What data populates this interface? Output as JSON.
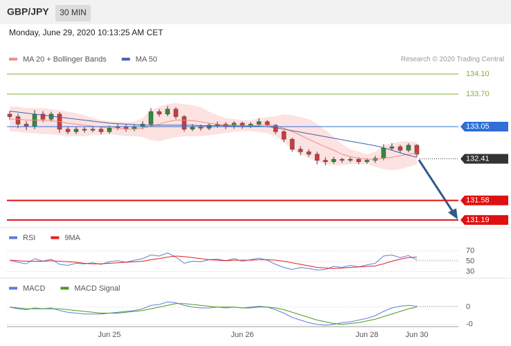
{
  "header": {
    "symbol": "GBP/JPY",
    "timeframe": "30 MIN",
    "timestamp": "Monday, June 29, 2020 10:13:25 AM CET",
    "credit": "Research © 2020 Trading Central"
  },
  "chart_data": [
    {
      "type": "candlestick",
      "categories": [
        null,
        null,
        null,
        null,
        null,
        null,
        null,
        null,
        null,
        null,
        null,
        null,
        "Jun 25",
        null,
        null,
        null,
        null,
        null,
        null,
        null,
        null,
        null,
        null,
        null,
        null,
        null,
        null,
        null,
        "Jun 26",
        null,
        null,
        null,
        null,
        null,
        null,
        null,
        null,
        null,
        null,
        null,
        null,
        null,
        null,
        "Jun 28",
        null,
        null,
        null,
        null,
        null,
        "Jun 30"
      ],
      "open": [
        133.3,
        133.25,
        133.1,
        133.05,
        133.3,
        133.2,
        133.3,
        133.0,
        132.95,
        133.0,
        132.98,
        133.0,
        132.95,
        133.02,
        133.05,
        133.0,
        133.05,
        133.1,
        133.35,
        133.3,
        133.4,
        133.25,
        133.0,
        133.05,
        133.02,
        133.08,
        133.1,
        133.05,
        133.12,
        133.05,
        133.1,
        133.15,
        133.08,
        132.95,
        132.8,
        132.6,
        132.55,
        132.5,
        132.38,
        132.35,
        132.4,
        132.38,
        132.4,
        132.35,
        132.38,
        132.42,
        132.62,
        132.65,
        132.58,
        132.68
      ],
      "high": [
        133.36,
        133.31,
        133.16,
        133.38,
        133.36,
        133.35,
        133.34,
        133.06,
        133.05,
        133.04,
        133.05,
        133.05,
        133.07,
        133.1,
        133.1,
        133.1,
        133.16,
        133.42,
        133.4,
        133.46,
        133.44,
        133.28,
        133.1,
        133.09,
        133.12,
        133.15,
        133.14,
        133.16,
        133.15,
        133.14,
        133.22,
        133.18,
        133.1,
        132.98,
        132.83,
        132.66,
        132.6,
        132.55,
        132.44,
        132.45,
        132.43,
        132.44,
        132.44,
        132.42,
        132.47,
        132.7,
        132.72,
        132.69,
        132.72,
        132.7
      ],
      "low": [
        133.19,
        133.02,
        132.98,
        133.0,
        133.14,
        133.15,
        132.93,
        132.9,
        132.9,
        132.93,
        132.94,
        132.9,
        132.91,
        132.98,
        132.95,
        132.96,
        133.0,
        133.06,
        133.25,
        133.26,
        133.2,
        132.95,
        132.96,
        132.97,
        132.98,
        133.03,
        133.0,
        133.01,
        133.01,
        133.02,
        133.06,
        133.04,
        132.9,
        132.74,
        132.55,
        132.48,
        132.45,
        132.3,
        132.28,
        132.31,
        132.33,
        132.34,
        132.3,
        132.31,
        132.33,
        132.38,
        132.58,
        132.52,
        132.54,
        132.45
      ],
      "close": [
        133.25,
        133.1,
        133.05,
        133.3,
        133.2,
        133.3,
        133.0,
        132.95,
        133.0,
        132.98,
        133.0,
        132.95,
        133.02,
        133.05,
        133.0,
        133.05,
        133.1,
        133.35,
        133.3,
        133.4,
        133.25,
        133.0,
        133.05,
        133.02,
        133.08,
        133.1,
        133.05,
        133.12,
        133.05,
        133.1,
        133.15,
        133.08,
        132.95,
        132.8,
        132.6,
        132.55,
        132.5,
        132.38,
        132.35,
        132.4,
        132.38,
        132.4,
        132.35,
        132.38,
        132.42,
        132.62,
        132.65,
        132.58,
        132.68,
        132.5
      ],
      "up_color": "#2e8b3a",
      "down_color": "#d13b3b",
      "wick_color": "#3a3a3a",
      "overlays": [
        {
          "name": "MA 20 + Bollinger Bands",
          "color": "#f08a8a",
          "band_color": "#fde2e2",
          "values": [
            133.2,
            133.2,
            133.18,
            133.18,
            133.18,
            133.17,
            133.15,
            133.12,
            133.1,
            133.08,
            133.06,
            133.04,
            133.03,
            133.02,
            133.0,
            133.0,
            133.02,
            133.06,
            133.1,
            133.15,
            133.18,
            133.18,
            133.17,
            133.15,
            133.12,
            133.1,
            133.08,
            133.08,
            133.07,
            133.07,
            133.08,
            133.08,
            133.06,
            133.02,
            132.95,
            132.88,
            132.8,
            132.72,
            132.65,
            132.58,
            132.5,
            132.45,
            132.42,
            132.4,
            132.4,
            132.42,
            132.44,
            132.47,
            132.5,
            132.52
          ],
          "upper": [
            133.45,
            133.45,
            133.42,
            133.42,
            133.42,
            133.4,
            133.38,
            133.35,
            133.32,
            133.28,
            133.22,
            133.18,
            133.16,
            133.15,
            133.14,
            133.15,
            133.22,
            133.38,
            133.45,
            133.5,
            133.52,
            133.5,
            133.48,
            133.44,
            133.35,
            133.28,
            133.22,
            133.2,
            133.18,
            133.18,
            133.22,
            133.24,
            133.26,
            133.3,
            133.28,
            133.24,
            133.2,
            133.1,
            132.98,
            132.85,
            132.7,
            132.6,
            132.55,
            132.5,
            132.55,
            132.68,
            132.72,
            132.75,
            132.76,
            132.74
          ],
          "lower": [
            132.95,
            132.95,
            132.92,
            132.92,
            132.9,
            132.9,
            132.88,
            132.86,
            132.86,
            132.86,
            132.88,
            132.88,
            132.9,
            132.88,
            132.86,
            132.86,
            132.84,
            132.78,
            132.76,
            132.8,
            132.84,
            132.86,
            132.86,
            132.86,
            132.88,
            132.9,
            132.92,
            132.95,
            132.96,
            132.96,
            132.94,
            132.92,
            132.86,
            132.74,
            132.6,
            132.5,
            132.42,
            132.35,
            132.3,
            132.28,
            132.28,
            132.3,
            132.3,
            132.3,
            132.25,
            132.2,
            132.18,
            132.2,
            132.25,
            132.3
          ]
        },
        {
          "name": "MA 50",
          "color": "#3a63a8",
          "values": [
            133.36,
            133.34,
            133.32,
            133.3,
            133.28,
            133.26,
            133.24,
            133.22,
            133.2,
            133.18,
            133.16,
            133.14,
            133.12,
            133.11,
            133.1,
            133.09,
            133.08,
            133.08,
            133.08,
            133.08,
            133.08,
            133.08,
            133.08,
            133.07,
            133.07,
            133.07,
            133.07,
            133.06,
            133.06,
            133.06,
            133.06,
            133.05,
            133.03,
            133.0,
            132.97,
            132.94,
            132.91,
            132.88,
            132.85,
            132.82,
            132.79,
            132.76,
            132.73,
            132.7,
            132.67,
            132.63,
            132.58,
            132.53,
            132.48,
            132.44
          ]
        }
      ],
      "levels": [
        {
          "value": 134.1,
          "label": "134.10",
          "color": "#7fae3e",
          "boxed": false,
          "line_style": "solid",
          "line_width": 1
        },
        {
          "value": 133.7,
          "label": "133.70",
          "color": "#7fae3e",
          "boxed": false,
          "line_style": "solid",
          "line_width": 1
        },
        {
          "value": 133.05,
          "label": "133.05",
          "color": "#2f6fd6",
          "boxed": true,
          "line_style": "solid",
          "line_width": 1
        },
        {
          "value": 132.41,
          "label": "132.41",
          "color": "#333333",
          "boxed": true,
          "line_style": "dotted",
          "line_width": 1
        },
        {
          "value": 131.58,
          "label": "131.58",
          "color": "#e01010",
          "boxed": true,
          "line_style": "solid",
          "line_width": 2
        },
        {
          "value": 131.19,
          "label": "131.19",
          "color": "#e01010",
          "boxed": true,
          "line_style": "solid",
          "line_width": 2
        }
      ],
      "ylim": [
        131.05,
        134.61
      ]
    },
    {
      "type": "line",
      "series": [
        {
          "name": "RSI",
          "color": "#5b7fd6",
          "values": [
            52,
            48,
            45,
            55,
            50,
            54,
            44,
            42,
            46,
            45,
            47,
            44,
            49,
            51,
            48,
            52,
            55,
            62,
            60,
            66,
            58,
            46,
            50,
            49,
            53,
            54,
            51,
            55,
            50,
            53,
            56,
            52,
            44,
            38,
            34,
            38,
            36,
            33,
            34,
            40,
            38,
            42,
            39,
            43,
            46,
            60,
            62,
            57,
            61,
            52
          ]
        },
        {
          "name": "9MA",
          "color": "#e02020",
          "values": [
            52,
            51,
            50,
            50,
            50,
            51,
            50,
            49,
            48,
            46,
            45,
            45,
            46,
            47,
            48,
            49,
            50,
            53,
            55,
            58,
            60,
            59,
            57,
            55,
            53,
            52,
            51,
            52,
            52,
            52,
            53,
            53,
            52,
            50,
            47,
            44,
            41,
            38,
            37,
            36,
            37,
            38,
            39,
            40,
            41,
            45,
            50,
            54,
            57,
            58
          ]
        }
      ],
      "ylim": [
        20,
        80
      ],
      "yticks": [
        70,
        50,
        30
      ]
    },
    {
      "type": "line",
      "series": [
        {
          "name": "MACD",
          "color": "#5b7fd6",
          "values": [
            0,
            -0.02,
            -0.03,
            -0.01,
            -0.02,
            -0.01,
            -0.04,
            -0.06,
            -0.07,
            -0.08,
            -0.08,
            -0.08,
            -0.07,
            -0.06,
            -0.05,
            -0.04,
            -0.02,
            0.02,
            0.03,
            0.06,
            0.05,
            0.02,
            0,
            -0.01,
            -0.01,
            0,
            -0.01,
            0,
            -0.01,
            0,
            0.01,
            0,
            -0.03,
            -0.07,
            -0.12,
            -0.15,
            -0.18,
            -0.2,
            -0.21,
            -0.2,
            -0.18,
            -0.17,
            -0.15,
            -0.13,
            -0.1,
            -0.05,
            -0.01,
            0.01,
            0.02,
            0.01
          ]
        },
        {
          "name": "MACD Signal",
          "color": "#4a9a1a",
          "values": [
            0,
            -0.01,
            -0.02,
            -0.02,
            -0.02,
            -0.02,
            -0.02,
            -0.03,
            -0.04,
            -0.05,
            -0.06,
            -0.07,
            -0.07,
            -0.07,
            -0.06,
            -0.05,
            -0.04,
            -0.02,
            0,
            0.02,
            0.04,
            0.04,
            0.03,
            0.02,
            0.01,
            0,
            0,
            0,
            -0.01,
            -0.01,
            0,
            0,
            -0.01,
            -0.03,
            -0.06,
            -0.09,
            -0.12,
            -0.15,
            -0.17,
            -0.19,
            -0.2,
            -0.19,
            -0.18,
            -0.16,
            -0.14,
            -0.11,
            -0.08,
            -0.05,
            -0.02,
            0
          ]
        }
      ],
      "ylim": [
        -0.25,
        0.15
      ],
      "yticks": [
        0,
        {
          "value": -0.2,
          "label": "-0"
        }
      ]
    }
  ]
}
